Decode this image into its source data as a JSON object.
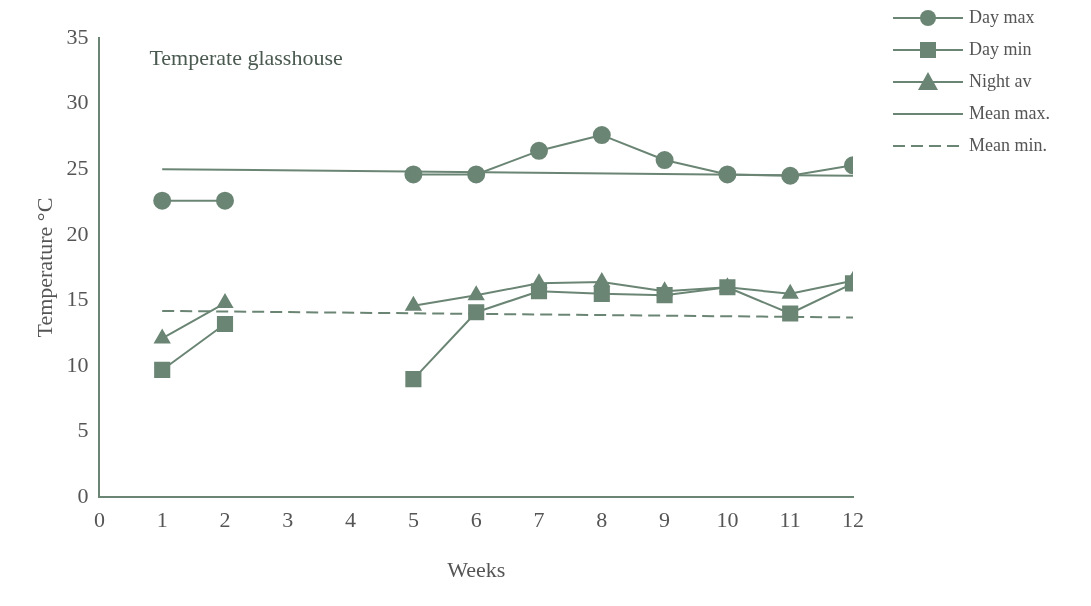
{
  "chart_data": {
    "type": "line",
    "title": "Temperate glasshouse",
    "xlabel": "Weeks",
    "ylabel": "Temperature °C",
    "xlim": [
      0,
      12
    ],
    "xticks": [
      0,
      1,
      2,
      3,
      4,
      5,
      6,
      7,
      8,
      9,
      10,
      11,
      12
    ],
    "ylim": [
      0,
      35
    ],
    "yticks": [
      0,
      5,
      10,
      15,
      20,
      25,
      30,
      35
    ],
    "grid": false,
    "legend": "top right",
    "series": [
      {
        "name": "Day max",
        "color": "#6b8574",
        "marker": "circle",
        "line_style": "solid",
        "x": [
          1,
          2,
          3,
          4,
          5,
          6,
          7,
          8,
          9,
          10,
          11,
          12
        ],
        "values": [
          22.6,
          22.6,
          null,
          null,
          24.6,
          24.6,
          26.4,
          27.6,
          25.7,
          24.6,
          24.5,
          25.3
        ]
      },
      {
        "name": "Day min",
        "color": "#6b8574",
        "marker": "square",
        "line_style": "solid",
        "x": [
          1,
          2,
          3,
          4,
          5,
          6,
          7,
          8,
          9,
          10,
          11,
          12
        ],
        "values": [
          9.7,
          13.2,
          null,
          null,
          9.0,
          14.1,
          15.7,
          15.5,
          15.4,
          16.0,
          14.0,
          16.3
        ]
      },
      {
        "name": "Night av",
        "color": "#6b8574",
        "marker": "triangle",
        "line_style": "solid",
        "x": [
          1,
          2,
          3,
          4,
          5,
          6,
          7,
          8,
          9,
          10,
          11,
          12
        ],
        "values": [
          12.1,
          14.8,
          null,
          null,
          14.6,
          15.4,
          16.3,
          16.4,
          15.7,
          16.0,
          15.5,
          16.5
        ]
      },
      {
        "name": "Mean max.",
        "color": "#6b8574",
        "marker": "none",
        "line_style": "solid",
        "x": [
          1,
          12
        ],
        "values": [
          25.0,
          24.5
        ]
      },
      {
        "name": "Mean min.",
        "color": "#6b8574",
        "marker": "none",
        "line_style": "dashed",
        "x": [
          1,
          12
        ],
        "values": [
          14.2,
          13.7
        ]
      }
    ]
  }
}
